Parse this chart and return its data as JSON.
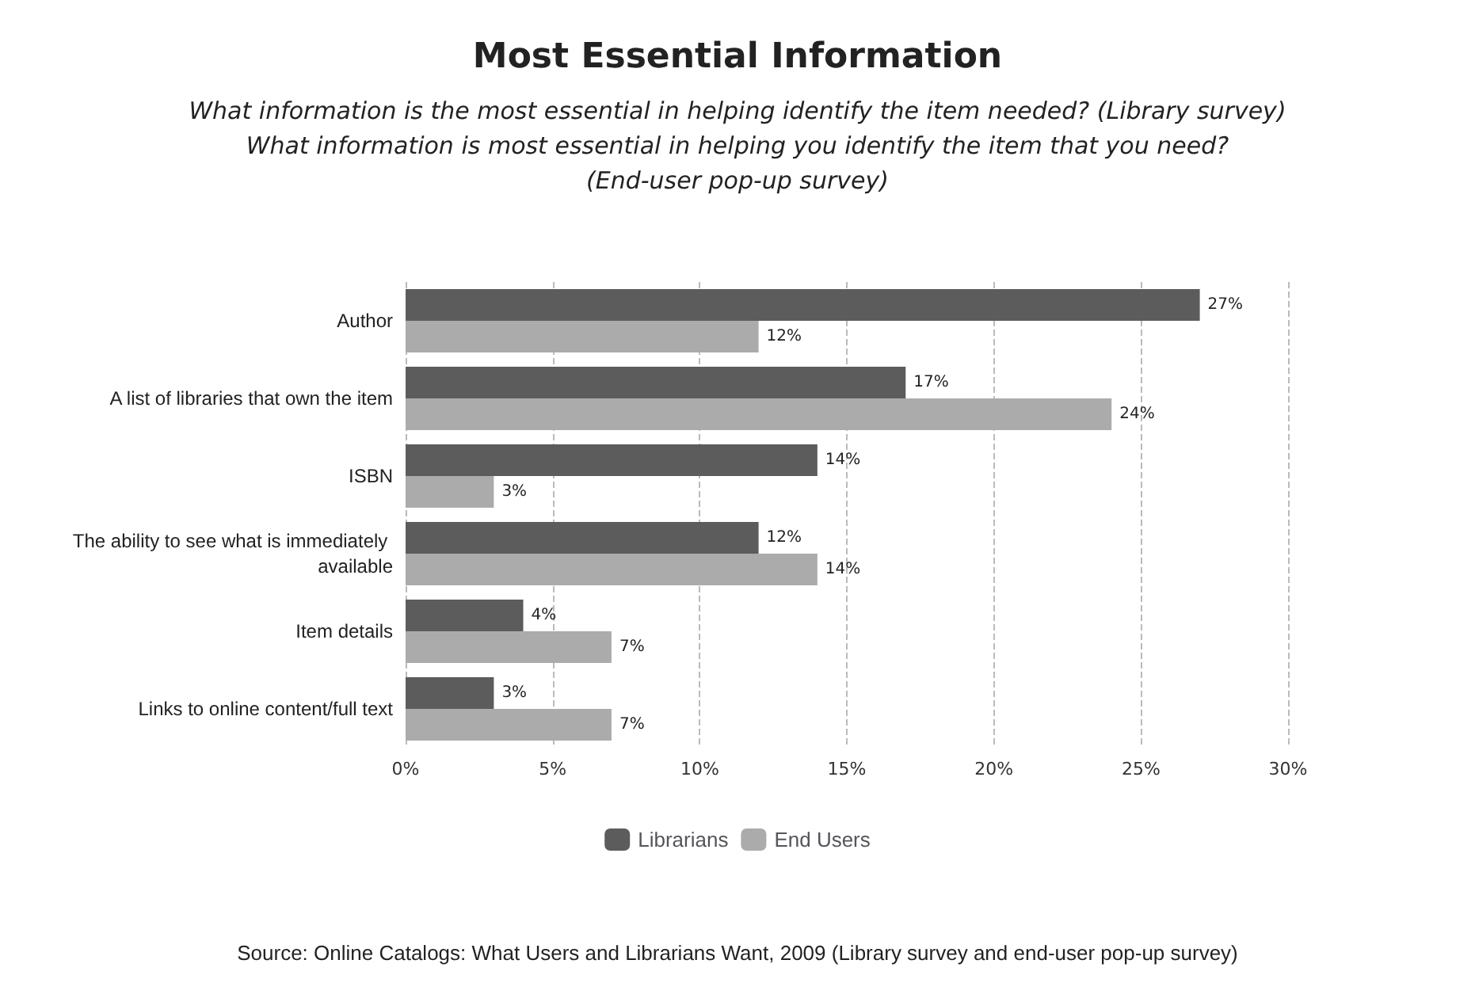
{
  "chart_data": {
    "type": "bar",
    "orientation": "horizontal",
    "title": "Most Essential Information",
    "subtitle": "What information is the most essential in helping identify the item needed? (Library survey)\nWhat information is most essential in helping you identify the item that you need?\n(End-user pop-up survey)",
    "categories": [
      "Author",
      "A list of libraries that own the item",
      "ISBN",
      "The ability to see what is immediately available",
      "Item details",
      "Links to online content/full text"
    ],
    "series": [
      {
        "name": "Librarians",
        "color": "#5c5c5c",
        "values": [
          27,
          17,
          14,
          12,
          4,
          3
        ],
        "value_labels": [
          "27%",
          "17%",
          "14%",
          "12%",
          "4%",
          "3%"
        ]
      },
      {
        "name": "End Users",
        "color": "#ababab",
        "values": [
          12,
          24,
          3,
          14,
          7,
          7
        ],
        "value_labels": [
          "12%",
          "24%",
          "3%",
          "14%",
          "7%",
          "7%"
        ]
      }
    ],
    "xlim": [
      0,
      30
    ],
    "xticks": [
      {
        "value": 0,
        "label": "0%"
      },
      {
        "value": 5,
        "label": "5%"
      },
      {
        "value": 10,
        "label": "10%"
      },
      {
        "value": 15,
        "label": "15%"
      },
      {
        "value": 20,
        "label": "20%"
      },
      {
        "value": 25,
        "label": "25%"
      },
      {
        "value": 30,
        "label": "30%"
      }
    ],
    "grid": "x",
    "legend": "bottom",
    "annotations": [
      "Source: Online Catalogs: What Users and Librarians Want, 2009 (Library survey and end-user pop-up survey)"
    ]
  }
}
